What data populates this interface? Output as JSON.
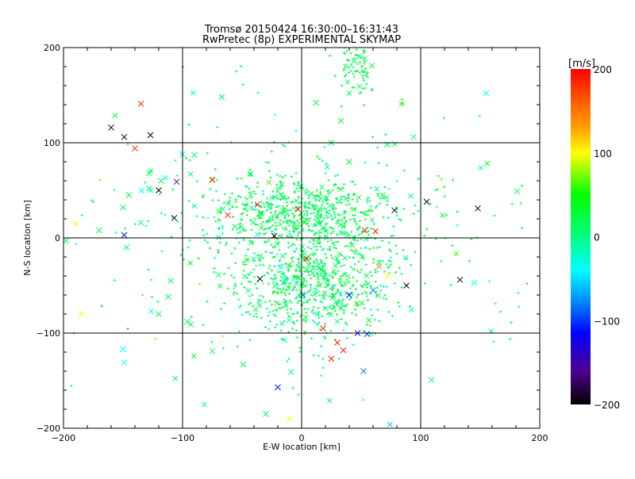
{
  "chart_data": {
    "type": "scatter",
    "title": "Tromsø 20150424 16:30:00–16:31:43",
    "subtitle": "RwPretec (8p) EXPERIMENTAL SKYMAP",
    "xlabel": "E-W location [km]",
    "ylabel": "N-S location [km]",
    "xlim": [
      -200,
      200
    ],
    "ylim": [
      -200,
      200
    ],
    "xticks": [
      "−200",
      "−100",
      "0",
      "100",
      "200"
    ],
    "yticks": [
      "−200",
      "−100",
      "0",
      "100",
      "200"
    ],
    "xtick_values": [
      -200,
      -100,
      0,
      100,
      200
    ],
    "ytick_values": [
      -200,
      -100,
      0,
      100,
      200
    ],
    "grid": true,
    "colorbar": {
      "label": "[m/s]",
      "range": [
        -200,
        200
      ],
      "ticks": [
        "200",
        "100",
        "0",
        "−100",
        "−200"
      ],
      "tick_values": [
        200,
        100,
        0,
        -100,
        -200
      ],
      "stops": [
        {
          "v": 200,
          "color": "#ff0000"
        },
        {
          "v": 160,
          "color": "#ff6000"
        },
        {
          "v": 130,
          "color": "#ffa000"
        },
        {
          "v": 100,
          "color": "#ffff00"
        },
        {
          "v": 50,
          "color": "#00ff00"
        },
        {
          "v": 0,
          "color": "#00ff80"
        },
        {
          "v": -40,
          "color": "#00ffff"
        },
        {
          "v": -80,
          "color": "#0080ff"
        },
        {
          "v": -115,
          "color": "#0000ff"
        },
        {
          "v": -160,
          "color": "#500090"
        },
        {
          "v": -200,
          "color": "#000000"
        }
      ]
    },
    "points_note_clusters": [
      {
        "cx": 0,
        "cy": 25,
        "sx": 38,
        "sy": 18,
        "n": 550,
        "v_mean": 15,
        "v_sd": 18
      },
      {
        "cx": 10,
        "cy": -46,
        "sx": 32,
        "sy": 28,
        "n": 650,
        "v_mean": 15,
        "v_sd": 18
      },
      {
        "cx": 0,
        "cy": 0,
        "sx": 95,
        "sy": 70,
        "n": 320,
        "v_mean": 10,
        "v_sd": 30
      },
      {
        "cx": 45,
        "cy": 175,
        "sx": 7,
        "sy": 14,
        "n": 70,
        "v_mean": 20,
        "v_sd": 10
      }
    ],
    "points": [
      {
        "x": -135,
        "y": 141,
        "v": 190
      },
      {
        "x": -67,
        "y": 148,
        "v": 20
      },
      {
        "x": -149,
        "y": 106,
        "v": -200
      },
      {
        "x": -127,
        "y": 108,
        "v": -200
      },
      {
        "x": -120,
        "y": 50,
        "v": -200
      },
      {
        "x": -105,
        "y": 59,
        "v": -160
      },
      {
        "x": -75,
        "y": 61,
        "v": 190
      },
      {
        "x": -62,
        "y": 24,
        "v": 190
      },
      {
        "x": -37,
        "y": 35,
        "v": 190
      },
      {
        "x": -149,
        "y": 3,
        "v": -110
      },
      {
        "x": -23,
        "y": 2,
        "v": -200
      },
      {
        "x": -35,
        "y": -43,
        "v": -200
      },
      {
        "x": -3,
        "y": 30,
        "v": 190
      },
      {
        "x": 4,
        "y": -22,
        "v": 190
      },
      {
        "x": 78,
        "y": 29,
        "v": -200
      },
      {
        "x": 53,
        "y": 8,
        "v": 190
      },
      {
        "x": 62,
        "y": 7,
        "v": 190
      },
      {
        "x": 52,
        "y": -140,
        "v": -80
      },
      {
        "x": -20,
        "y": -157,
        "v": -110
      },
      {
        "x": 155,
        "y": 152,
        "v": -40
      },
      {
        "x": 109,
        "y": -149,
        "v": 20
      },
      {
        "x": -150,
        "y": -117,
        "v": -40
      },
      {
        "x": -149,
        "y": -131,
        "v": -40
      },
      {
        "x": -93,
        "y": -91,
        "v": 10
      },
      {
        "x": -75,
        "y": -119,
        "v": 10
      },
      {
        "x": -49,
        "y": -133,
        "v": 10
      },
      {
        "x": -9,
        "y": -141,
        "v": 10
      },
      {
        "x": 12,
        "y": 142,
        "v": 20
      },
      {
        "x": 33,
        "y": 123,
        "v": 20
      },
      {
        "x": 59,
        "y": 181,
        "v": 20
      },
      {
        "x": 94,
        "y": 106,
        "v": 10
      },
      {
        "x": 145,
        "y": -47,
        "v": -40
      },
      {
        "x": -160,
        "y": 116,
        "v": -200
      },
      {
        "x": -140,
        "y": 94,
        "v": 190
      },
      {
        "x": -128,
        "y": 68,
        "v": 20
      },
      {
        "x": -128,
        "y": 52,
        "v": 20
      },
      {
        "x": -145,
        "y": 45,
        "v": 20
      },
      {
        "x": -150,
        "y": 32,
        "v": 10
      },
      {
        "x": -135,
        "y": 16,
        "v": 10
      },
      {
        "x": -170,
        "y": 8,
        "v": 20
      },
      {
        "x": -190,
        "y": 15,
        "v": 100
      },
      {
        "x": -147,
        "y": -10,
        "v": 10
      },
      {
        "x": -110,
        "y": -45,
        "v": 10
      },
      {
        "x": -112,
        "y": -62,
        "v": 10
      },
      {
        "x": -120,
        "y": -80,
        "v": 10
      },
      {
        "x": -96,
        "y": -88,
        "v": 10
      },
      {
        "x": -107,
        "y": 21,
        "v": -200
      },
      {
        "x": -90,
        "y": 87,
        "v": 10
      },
      {
        "x": -100,
        "y": 88,
        "v": -40
      },
      {
        "x": -118,
        "y": 60,
        "v": 20
      },
      {
        "x": 25,
        "y": 100,
        "v": 20
      },
      {
        "x": 72,
        "y": 98,
        "v": 20
      },
      {
        "x": 68,
        "y": 45,
        "v": 20
      },
      {
        "x": 40,
        "y": 80,
        "v": 20
      },
      {
        "x": 88,
        "y": -50,
        "v": -200
      },
      {
        "x": 133,
        "y": -44,
        "v": -200
      },
      {
        "x": 105,
        "y": 38,
        "v": -200
      },
      {
        "x": 148,
        "y": 31,
        "v": -200
      },
      {
        "x": 181,
        "y": 49,
        "v": 20
      },
      {
        "x": 30,
        "y": -110,
        "v": 190
      },
      {
        "x": 25,
        "y": -127,
        "v": 190
      },
      {
        "x": 35,
        "y": -118,
        "v": 190
      },
      {
        "x": 47,
        "y": -100,
        "v": -110
      },
      {
        "x": 55,
        "y": -101,
        "v": -110
      },
      {
        "x": 40,
        "y": -60,
        "v": -110
      },
      {
        "x": 60,
        "y": -55,
        "v": -80
      },
      {
        "x": 65,
        "y": -30,
        "v": 140
      },
      {
        "x": 72,
        "y": -40,
        "v": 100
      },
      {
        "x": -10,
        "y": -190,
        "v": 100
      },
      {
        "x": -30,
        "y": -185,
        "v": 10
      },
      {
        "x": -198,
        "y": -3,
        "v": 20
      },
      {
        "x": -185,
        "y": -80,
        "v": 100
      },
      {
        "x": 1,
        "y": -60,
        "v": -80
      },
      {
        "x": 18,
        "y": -95,
        "v": 190
      }
    ]
  }
}
